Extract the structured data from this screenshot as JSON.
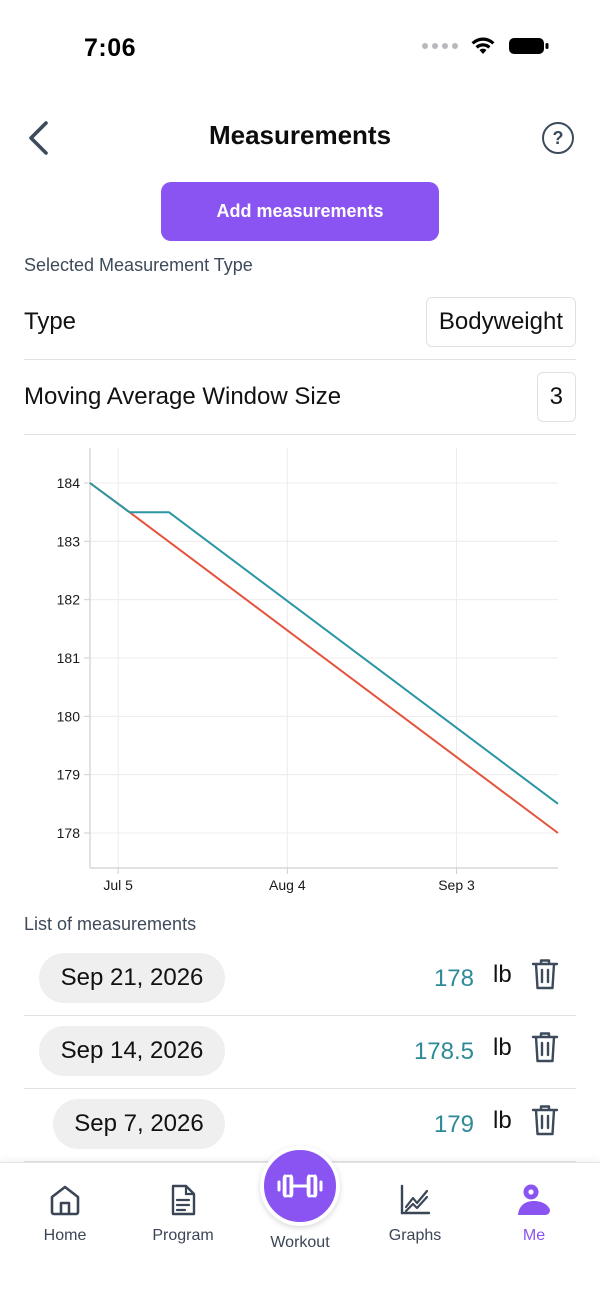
{
  "status_bar": {
    "time": "7:06"
  },
  "header": {
    "title": "Measurements",
    "help": "?"
  },
  "actions": {
    "add_label": "Add measurements"
  },
  "selected_type": {
    "section_label": "Selected Measurement Type",
    "type_label": "Type",
    "type_value": "Bodyweight",
    "window_label": "Moving Average Window Size",
    "window_value": "3"
  },
  "chart_data": {
    "type": "line",
    "ylim": [
      177.4,
      184.6
    ],
    "yticks": [
      184,
      183,
      182,
      181,
      180,
      179,
      178
    ],
    "xlim": [
      "2026-06-30",
      "2026-09-21"
    ],
    "xticks": [
      {
        "date": "2026-07-05",
        "label": "Jul 5"
      },
      {
        "date": "2026-08-04",
        "label": "Aug 4"
      },
      {
        "date": "2026-09-03",
        "label": "Sep 3"
      }
    ],
    "grid": true,
    "series": [
      {
        "color": "#e5533c",
        "points": [
          {
            "x": "2026-06-30",
            "y": 184
          },
          {
            "x": "2026-07-07",
            "y": 183.5
          },
          {
            "x": "2026-09-21",
            "y": 178
          }
        ]
      },
      {
        "color": "#2a96a2",
        "points": [
          {
            "x": "2026-06-30",
            "y": 184
          },
          {
            "x": "2026-07-07",
            "y": 183.5
          },
          {
            "x": "2026-07-14",
            "y": 183.5
          },
          {
            "x": "2026-09-21",
            "y": 178.5
          }
        ]
      }
    ]
  },
  "list": {
    "section_label": "List of measurements",
    "items": [
      {
        "date": "Sep 21, 2026",
        "value": "178",
        "unit": "lb"
      },
      {
        "date": "Sep 14, 2026",
        "value": "178.5",
        "unit": "lb"
      },
      {
        "date": "Sep 7, 2026",
        "value": "179",
        "unit": "lb"
      }
    ]
  },
  "bottom_nav": {
    "tabs": [
      {
        "label": "Home",
        "icon": "home-icon"
      },
      {
        "label": "Program",
        "icon": "document-icon"
      },
      {
        "label": "Workout",
        "icon": "dumbbell-icon"
      },
      {
        "label": "Graphs",
        "icon": "line-chart-icon"
      },
      {
        "label": "Me",
        "icon": "user-icon"
      }
    ],
    "active": "Me",
    "accent": "#8a54f2"
  }
}
